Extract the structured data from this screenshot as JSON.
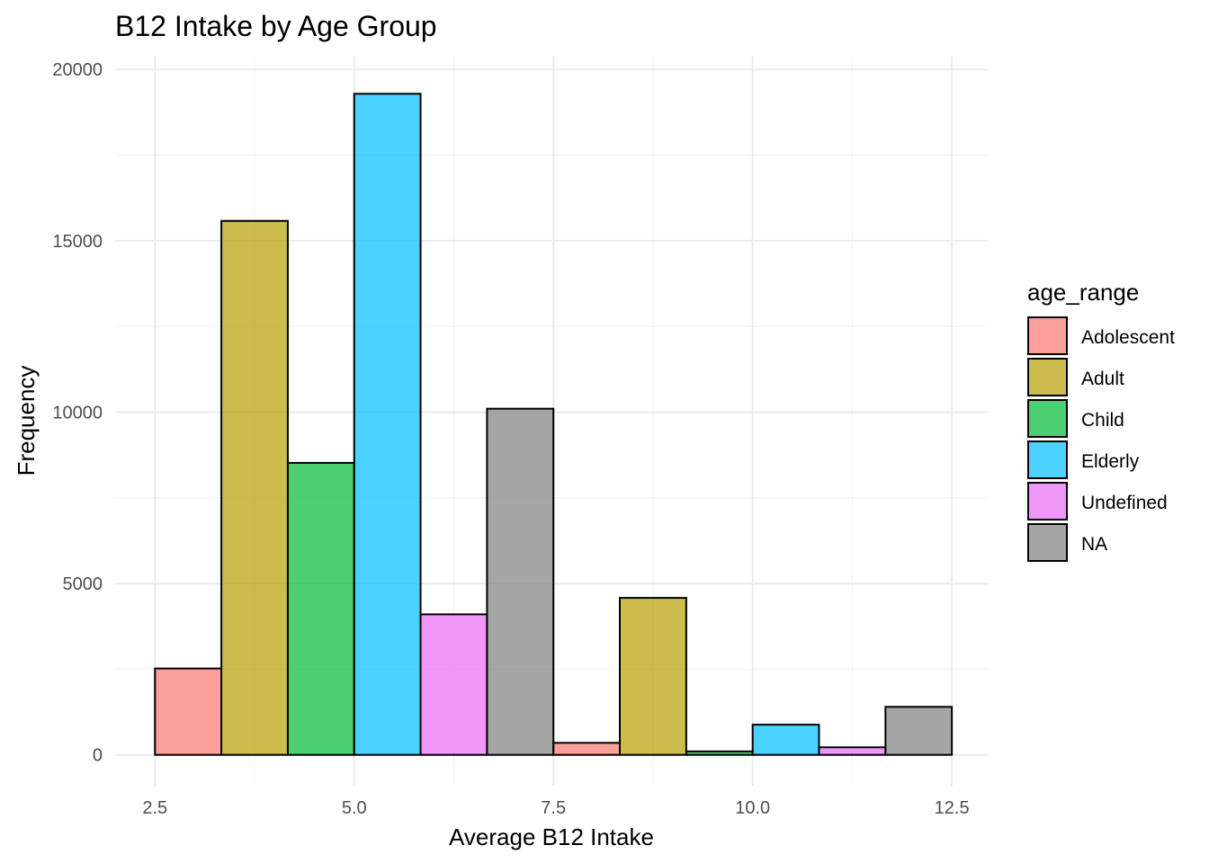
{
  "chart_data": {
    "type": "bar",
    "subtype": "histogram",
    "title": "B12 Intake by Age Group",
    "xlabel": "Average B12 Intake",
    "ylabel": "Frequency",
    "xlim": [
      2.0,
      12.95
    ],
    "ylim": [
      -900,
      20400
    ],
    "x_ticks": [
      {
        "value": 2.5,
        "label": "2.5"
      },
      {
        "value": 5.0,
        "label": "5.0"
      },
      {
        "value": 7.5,
        "label": "7.5"
      },
      {
        "value": 10.0,
        "label": "10.0"
      },
      {
        "value": 12.5,
        "label": "12.5"
      }
    ],
    "y_ticks": [
      {
        "value": 0,
        "label": "0"
      },
      {
        "value": 5000,
        "label": "5000"
      },
      {
        "value": 10000,
        "label": "10000"
      },
      {
        "value": 15000,
        "label": "15000"
      },
      {
        "value": 20000,
        "label": "20000"
      }
    ],
    "grid": true,
    "legend": {
      "title": "age_range",
      "position": "right",
      "entries": [
        {
          "name": "Adolescent",
          "color": "#F8766D"
        },
        {
          "name": "Adult",
          "color": "#B79F00"
        },
        {
          "name": "Child",
          "color": "#00BA38"
        },
        {
          "name": "Elderly",
          "color": "#00BFFF"
        },
        {
          "name": "Undefined",
          "color": "#E76BF3"
        },
        {
          "name": "NA",
          "color": "#808080"
        }
      ]
    },
    "bar_opacity": 0.7,
    "bars": [
      {
        "x0": 2.5,
        "x1": 3.333,
        "value": 2520,
        "group": "Adolescent"
      },
      {
        "x0": 3.333,
        "x1": 4.167,
        "value": 15580,
        "group": "Adult"
      },
      {
        "x0": 4.167,
        "x1": 5.0,
        "value": 8520,
        "group": "Child"
      },
      {
        "x0": 5.0,
        "x1": 5.833,
        "value": 19290,
        "group": "Elderly"
      },
      {
        "x0": 5.833,
        "x1": 6.667,
        "value": 4100,
        "group": "Undefined"
      },
      {
        "x0": 6.667,
        "x1": 7.5,
        "value": 10100,
        "group": "NA"
      },
      {
        "x0": 7.5,
        "x1": 8.333,
        "value": 350,
        "group": "Adolescent"
      },
      {
        "x0": 8.333,
        "x1": 9.167,
        "value": 4580,
        "group": "Adult"
      },
      {
        "x0": 9.167,
        "x1": 10.0,
        "value": 100,
        "group": "Child"
      },
      {
        "x0": 10.0,
        "x1": 10.833,
        "value": 880,
        "group": "Elderly"
      },
      {
        "x0": 10.833,
        "x1": 11.667,
        "value": 220,
        "group": "Undefined"
      },
      {
        "x0": 11.667,
        "x1": 12.5,
        "value": 1400,
        "group": "NA"
      }
    ]
  }
}
